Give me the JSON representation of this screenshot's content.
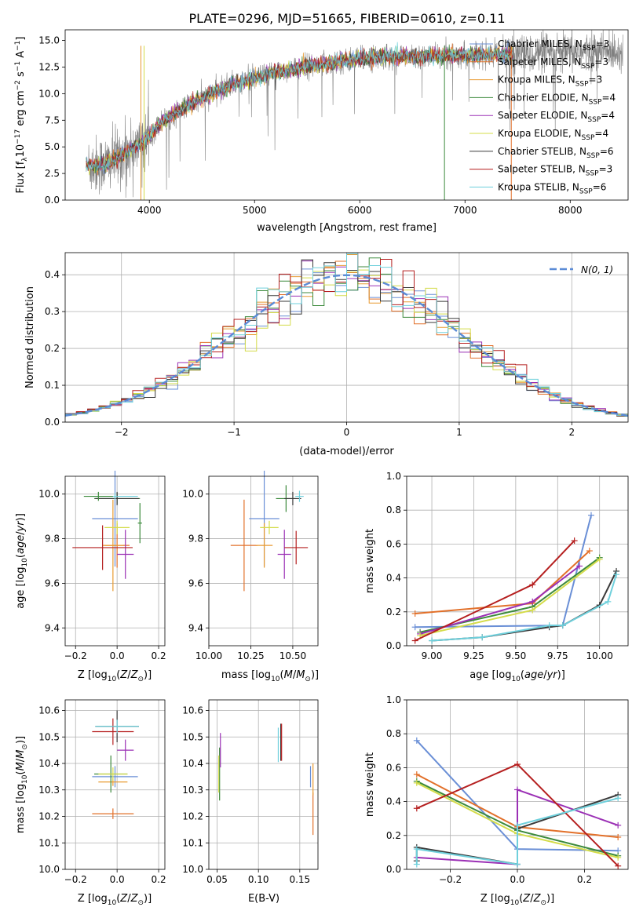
{
  "title": "PLATE=0296, MJD=51665, FIBERID=0610, z=0.11",
  "colors": [
    "#6a8fd6",
    "#e2702a",
    "#e89a30",
    "#3c8a3c",
    "#9b30b5",
    "#d4dc4a",
    "#3a3a3a",
    "#b51f1f",
    "#6fd0dc"
  ],
  "chart_data": [
    {
      "id": "spectrum",
      "type": "line",
      "title": "PLATE=0296, MJD=51665, FIBERID=0610, z=0.11",
      "xlabel": "wavelength [Angstrom, rest frame]",
      "ylabel": "Flux [fλ10⁻¹⁷ erg cm⁻² s⁻¹ A⁻¹]",
      "xlim": [
        3200,
        8550
      ],
      "ylim": [
        0,
        16
      ],
      "xticks": [
        "4000",
        "5000",
        "6000",
        "7000",
        "8000"
      ],
      "yticks": [
        "0.0",
        "2.5",
        "5.0",
        "7.5",
        "10.0",
        "12.5",
        "15.0"
      ],
      "data_color": "#808080",
      "legend": [
        "Chabrier MILES, N_SSP=3",
        "Salpeter MILES, N_SSP=3",
        "Kroupa MILES, N_SSP=3",
        "Chabrier ELODIE, N_SSP=4",
        "Salpeter ELODIE, N_SSP=4",
        "Kroupa ELODIE, N_SSP=4",
        "Chabrier STELIB, N_SSP=6",
        "Salpeter STELIB, N_SSP=3",
        "Kroupa STELIB, N_SSP=6"
      ],
      "legend_loc": "upper right",
      "continuum": {
        "x": [
          3400,
          3600,
          3800,
          3950,
          4100,
          4300,
          4500,
          4800,
          5000,
          5200,
          5500,
          5800,
          6000,
          6300,
          6600,
          7000,
          7400,
          7800,
          8200,
          8500
        ],
        "y": [
          3.2,
          3.4,
          4.6,
          5.5,
          7.2,
          8.5,
          9.6,
          10.9,
          11.4,
          12.0,
          12.6,
          13.0,
          13.3,
          13.5,
          13.5,
          13.6,
          13.7,
          13.8,
          13.9,
          14.0
        ]
      },
      "model_xrange": [
        3400,
        7450
      ],
      "data_xrange": [
        3420,
        8500
      ]
    },
    {
      "id": "residuals",
      "type": "histogram",
      "xlabel": "(data-model)/error",
      "ylabel": "Normed distribution",
      "xlim": [
        -2.5,
        2.5
      ],
      "ylim": [
        0,
        0.46
      ],
      "xticks": [
        "−2",
        "−1",
        "0",
        "1",
        "2"
      ],
      "yticks": [
        "0.0",
        "0.1",
        "0.2",
        "0.3",
        "0.4"
      ],
      "bin_width": 0.1,
      "gaussian_label": "N(0, 1)",
      "legend_loc": "upper right"
    },
    {
      "id": "age-Z",
      "type": "scatter",
      "xlabel": "Z [log10(Z/Z⊙)]",
      "ylabel": "age  [log10(age/yr)]",
      "xlim": [
        -0.25,
        0.23
      ],
      "ylim": [
        9.32,
        10.08
      ],
      "xticks": [
        "−0.2",
        "0.0",
        "0.2"
      ],
      "yticks": [
        "9.4",
        "9.6",
        "9.8",
        "10.0"
      ],
      "points": [
        {
          "x": -0.01,
          "y": 9.89,
          "xe": 0.22,
          "ye": 0.43,
          "c": 0
        },
        {
          "x": 0.0,
          "y": 9.77,
          "xe": 0.12,
          "ye": 0.2,
          "c": 1
        },
        {
          "x": -0.02,
          "y": 9.77,
          "xe": 0.1,
          "ye": 0.41,
          "c": 2
        },
        {
          "x": 0.0,
          "y": 9.98,
          "xe": 0.22,
          "ye": 0.05,
          "c": 3
        },
        {
          "x": 0.04,
          "y": 9.73,
          "xe": 0.08,
          "ye": 0.22,
          "c": 4
        },
        {
          "x": 0.0,
          "y": 9.85,
          "xe": 0.12,
          "ye": 0.06,
          "c": 5
        },
        {
          "x": 0.0,
          "y": 9.98,
          "xe": 0.21,
          "ye": 0.06,
          "c": 6
        },
        {
          "x": -0.07,
          "y": 9.76,
          "xe": 0.29,
          "ye": 0.2,
          "c": 7
        },
        {
          "x": -0.01,
          "y": 9.99,
          "xe": 0.22,
          "ye": 0.03,
          "c": 8
        },
        {
          "x": -0.09,
          "y": 9.99,
          "xe": 0.14,
          "ye": 0.04,
          "c": 3
        },
        {
          "x": 0.11,
          "y": 9.87,
          "xe": 0.02,
          "ye": 0.18,
          "c": 3
        }
      ]
    },
    {
      "id": "age-mass",
      "type": "scatter",
      "xlabel": "mass [log10(M/M⊙)]",
      "ylabel": "",
      "xlim": [
        10.0,
        10.65
      ],
      "ylim": [
        9.32,
        10.08
      ],
      "xticks": [
        "10.00",
        "10.25",
        "10.50"
      ],
      "yticks": [
        "9.4",
        "9.6",
        "9.8",
        "10.0"
      ],
      "points": [
        {
          "x": 10.33,
          "y": 9.89,
          "xe": 0.18,
          "ye": 0.43,
          "c": 0
        },
        {
          "x": 10.21,
          "y": 9.77,
          "xe": 0.16,
          "ye": 0.41,
          "c": 1
        },
        {
          "x": 10.33,
          "y": 9.77,
          "xe": 0.1,
          "ye": 0.2,
          "c": 2
        },
        {
          "x": 10.46,
          "y": 9.98,
          "xe": 0.12,
          "ye": 0.12,
          "c": 3
        },
        {
          "x": 10.45,
          "y": 9.73,
          "xe": 0.08,
          "ye": 0.22,
          "c": 4
        },
        {
          "x": 10.36,
          "y": 9.85,
          "xe": 0.11,
          "ye": 0.06,
          "c": 5
        },
        {
          "x": 10.5,
          "y": 9.98,
          "xe": 0.1,
          "ye": 0.06,
          "c": 6
        },
        {
          "x": 10.52,
          "y": 9.76,
          "xe": 0.14,
          "ye": 0.15,
          "c": 7
        },
        {
          "x": 10.54,
          "y": 9.99,
          "xe": 0.05,
          "ye": 0.05,
          "c": 8
        }
      ]
    },
    {
      "id": "weight-age",
      "type": "line",
      "xlabel": "age  [log10(age/yr)]",
      "ylabel": "mass weight",
      "xlim": [
        8.85,
        10.17
      ],
      "ylim": [
        0,
        1
      ],
      "xticks": [
        "9.00",
        "9.25",
        "9.50",
        "9.75",
        "10.00"
      ],
      "yticks": [
        "0.0",
        "0.2",
        "0.4",
        "0.6",
        "0.8",
        "1.0"
      ],
      "series": [
        {
          "c": 0,
          "x": [
            8.9,
            9.78,
            9.95
          ],
          "y": [
            0.11,
            0.12,
            0.77
          ]
        },
        {
          "c": 1,
          "x": [
            8.9,
            9.6,
            9.94
          ],
          "y": [
            0.19,
            0.25,
            0.56
          ]
        },
        {
          "c": 3,
          "x": [
            8.93,
            9.6,
            10.0
          ],
          "y": [
            0.08,
            0.23,
            0.52
          ]
        },
        {
          "c": 4,
          "x": [
            8.93,
            9.6,
            9.88
          ],
          "y": [
            0.07,
            0.26,
            0.47
          ]
        },
        {
          "c": 5,
          "x": [
            8.93,
            9.6,
            10.0
          ],
          "y": [
            0.06,
            0.21,
            0.51
          ]
        },
        {
          "c": 7,
          "x": [
            8.9,
            9.6,
            9.85
          ],
          "y": [
            0.03,
            0.36,
            0.62
          ]
        },
        {
          "c": 6,
          "x": [
            9.0,
            9.3,
            9.7,
            9.78,
            10.0,
            10.1
          ],
          "y": [
            0.03,
            0.05,
            0.11,
            0.12,
            0.24,
            0.44
          ]
        },
        {
          "c": 8,
          "x": [
            9.0,
            9.3,
            9.7,
            9.78,
            10.05,
            10.1
          ],
          "y": [
            0.03,
            0.05,
            0.12,
            0.12,
            0.26,
            0.42
          ]
        }
      ]
    },
    {
      "id": "mass-Z",
      "type": "scatter",
      "xlabel": "Z [log10(Z/Z⊙)]",
      "ylabel": "mass [log10(M/M⊙)]",
      "xlim": [
        -0.25,
        0.23
      ],
      "ylim": [
        10.0,
        10.64
      ],
      "xticks": [
        "−0.2",
        "0.0",
        "0.2"
      ],
      "yticks": [
        "10.0",
        "10.1",
        "10.2",
        "10.3",
        "10.4",
        "10.5",
        "10.6"
      ],
      "points": [
        {
          "x": -0.01,
          "y": 10.35,
          "xe": 0.22,
          "ye": 0.08,
          "c": 0
        },
        {
          "x": -0.02,
          "y": 10.21,
          "xe": 0.2,
          "ye": 0.04,
          "c": 1
        },
        {
          "x": -0.02,
          "y": 10.33,
          "xe": 0.14,
          "ye": 0.03,
          "c": 2
        },
        {
          "x": -0.03,
          "y": 10.36,
          "xe": 0.16,
          "ye": 0.14,
          "c": 3
        },
        {
          "x": 0.04,
          "y": 10.45,
          "xe": 0.08,
          "ye": 0.08,
          "c": 4
        },
        {
          "x": -0.02,
          "y": 10.36,
          "xe": 0.14,
          "ye": 0.05,
          "c": 5
        },
        {
          "x": 0.0,
          "y": 10.54,
          "xe": 0.21,
          "ye": 0.12,
          "c": 6
        },
        {
          "x": -0.02,
          "y": 10.52,
          "xe": 0.2,
          "ye": 0.1,
          "c": 7
        },
        {
          "x": 0.0,
          "y": 10.54,
          "xe": 0.21,
          "ye": 0.05,
          "c": 8
        }
      ]
    },
    {
      "id": "mass-EBV",
      "type": "scatter",
      "xlabel": "E(B-V)",
      "ylabel": "",
      "xlim": [
        0.04,
        0.172
      ],
      "ylim": [
        10.0,
        10.64
      ],
      "xticks": [
        "0.05",
        "0.10",
        "0.15"
      ],
      "yticks": [
        "10.0",
        "10.1",
        "10.2",
        "10.3",
        "10.4",
        "10.5",
        "10.6"
      ],
      "points": [
        {
          "x": 0.163,
          "y": 10.35,
          "ye": 0.08,
          "c": 0
        },
        {
          "x": 0.166,
          "y": 10.21,
          "ye": 0.16,
          "c": 1
        },
        {
          "x": 0.166,
          "y": 10.34,
          "ye": 0.12,
          "c": 2
        },
        {
          "x": 0.053,
          "y": 10.36,
          "ye": 0.2,
          "c": 3
        },
        {
          "x": 0.054,
          "y": 10.45,
          "ye": 0.13,
          "c": 4
        },
        {
          "x": 0.052,
          "y": 10.36,
          "ye": 0.14,
          "c": 5
        },
        {
          "x": 0.127,
          "y": 10.48,
          "ye": 0.14,
          "c": 6
        },
        {
          "x": 0.128,
          "y": 10.48,
          "ye": 0.14,
          "c": 7
        },
        {
          "x": 0.124,
          "y": 10.47,
          "ye": 0.13,
          "c": 8
        }
      ]
    },
    {
      "id": "weight-Z",
      "type": "line",
      "xlabel": "Z [log10(Z/Z⊙)]",
      "ylabel": "mass weight",
      "xlim": [
        -0.33,
        0.33
      ],
      "ylim": [
        0,
        1
      ],
      "xticks": [
        "−0.2",
        "0.0",
        "0.2"
      ],
      "yticks": [
        "0.0",
        "0.2",
        "0.4",
        "0.6",
        "0.8",
        "1.0"
      ],
      "series": [
        {
          "c": 0,
          "x": [
            -0.3,
            0.0,
            0.0,
            0.3
          ],
          "y": [
            0.76,
            0.12,
            0.12,
            0.11
          ]
        },
        {
          "c": 1,
          "x": [
            -0.3,
            0.0,
            0.3
          ],
          "y": [
            0.56,
            0.25,
            0.19
          ]
        },
        {
          "c": 3,
          "x": [
            -0.3,
            0.0,
            0.3
          ],
          "y": [
            0.52,
            0.23,
            0.08
          ]
        },
        {
          "c": 4,
          "x": [
            -0.3,
            0.0,
            0.0,
            0.3
          ],
          "y": [
            0.07,
            0.03,
            0.47,
            0.26
          ]
        },
        {
          "c": 5,
          "x": [
            -0.3,
            0.0,
            0.3
          ],
          "y": [
            0.51,
            0.21,
            0.07
          ]
        },
        {
          "c": 7,
          "x": [
            -0.3,
            0.0,
            0.3
          ],
          "y": [
            0.36,
            0.62,
            0.02
          ]
        },
        {
          "c": 6,
          "x": [
            -0.3,
            -0.3,
            0.0,
            0.0,
            0.3
          ],
          "y": [
            0.05,
            0.13,
            0.03,
            0.24,
            0.44
          ]
        },
        {
          "c": 8,
          "x": [
            -0.3,
            -0.3,
            0.0,
            0.0,
            0.3
          ],
          "y": [
            0.03,
            0.12,
            0.03,
            0.26,
            0.42
          ]
        }
      ]
    }
  ]
}
